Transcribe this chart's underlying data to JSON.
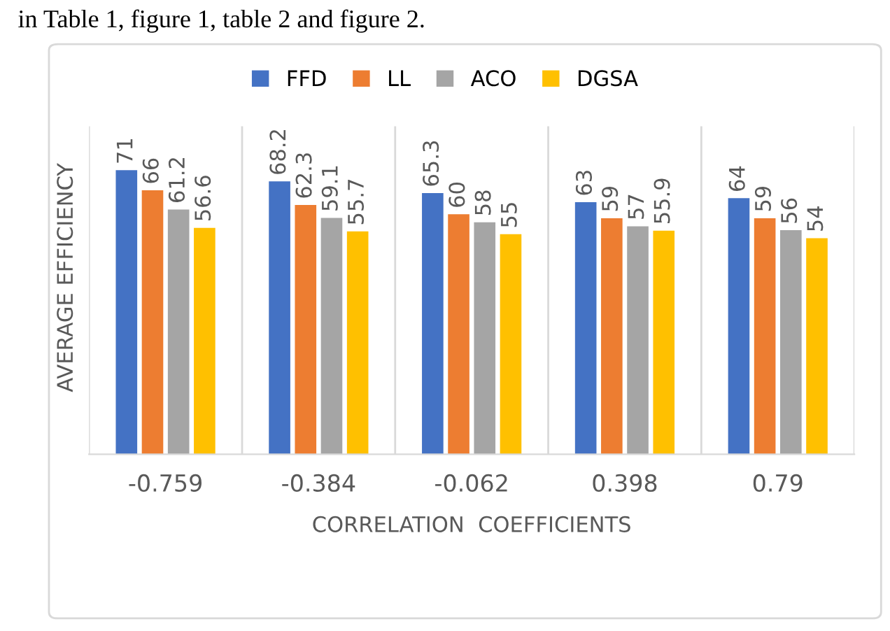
{
  "chart_data": {
    "type": "bar",
    "annotations": [
      "in Table 1, figure 1, table 2 and figure 2."
    ],
    "xlabel": "CORRELATION  COEFFICIENTS",
    "ylabel": "AVERAGE EFFICIENCY",
    "categories": [
      "-0.759",
      "-0.384",
      "-0.062",
      "0.398",
      "0.79"
    ],
    "series": [
      {
        "name": "FFD",
        "color": "#4472c4",
        "values": [
          71,
          68.2,
          65.3,
          63,
          64
        ]
      },
      {
        "name": "LL",
        "color": "#ed7d31",
        "values": [
          66,
          62.3,
          60,
          59,
          59
        ]
      },
      {
        "name": "ACO",
        "color": "#a5a5a5",
        "values": [
          61.2,
          59.1,
          58,
          57,
          56
        ]
      },
      {
        "name": "DGSA",
        "color": "#ffc000",
        "values": [
          56.6,
          55.7,
          55,
          55.9,
          54
        ]
      }
    ],
    "ylim": [
      0,
      82
    ],
    "data_labels": true,
    "grid": "x",
    "legend": "top",
    "tick_labels": "x"
  }
}
